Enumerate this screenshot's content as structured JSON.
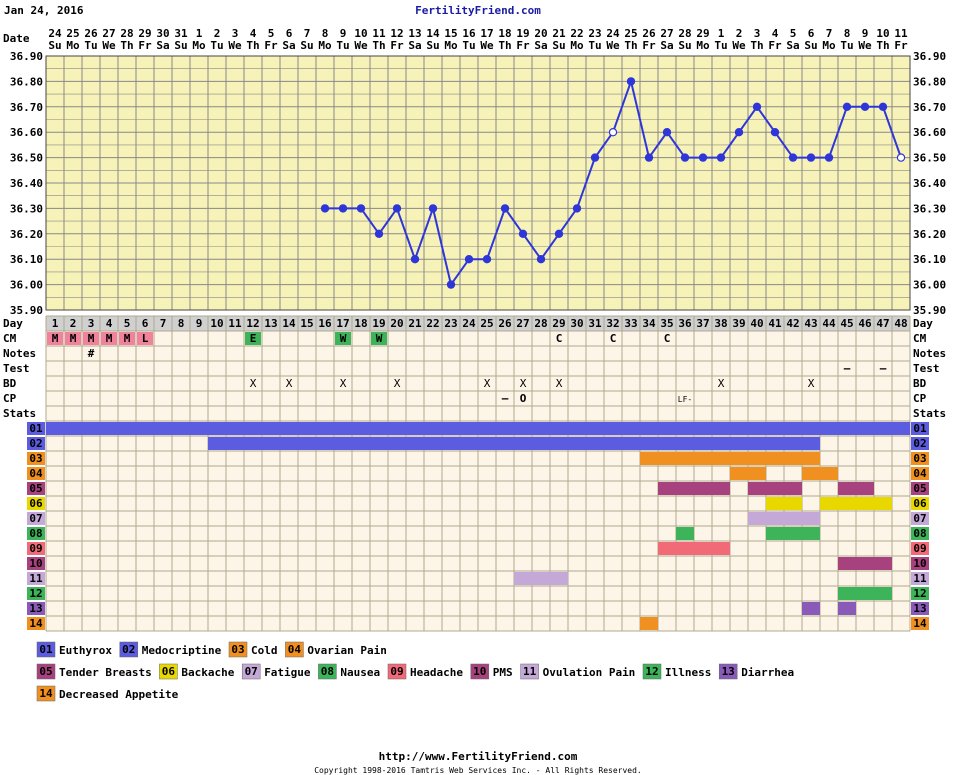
{
  "header": {
    "date": "Jan 24, 2016",
    "site": "FertilityFriend.com"
  },
  "footer": {
    "url": "http://www.FertilityFriend.com",
    "copyright": "Copyright 1998-2016 Tamtris Web Services Inc. - All Rights Reserved."
  },
  "row_labels": {
    "date": "Date",
    "day": "Day",
    "cm": "CM",
    "notes": "Notes",
    "test": "Test",
    "bd": "BD",
    "cp": "CP",
    "stats": "Stats"
  },
  "chart_data": {
    "type": "line",
    "ylim": [
      35.9,
      36.9
    ],
    "y_ticks": [
      "35.90",
      "36.00",
      "36.10",
      "36.20",
      "36.30",
      "36.40",
      "36.50",
      "36.60",
      "36.70",
      "36.80",
      "36.90"
    ],
    "dates": [
      "24",
      "25",
      "26",
      "27",
      "28",
      "29",
      "30",
      "31",
      "1",
      "2",
      "3",
      "4",
      "5",
      "6",
      "7",
      "8",
      "9",
      "10",
      "11",
      "12",
      "13",
      "14",
      "15",
      "16",
      "17",
      "18",
      "19",
      "20",
      "21",
      "22",
      "23",
      "24",
      "25",
      "26",
      "27",
      "28",
      "29",
      "1",
      "2",
      "3",
      "4",
      "5",
      "6",
      "7",
      "8",
      "9",
      "10",
      "11"
    ],
    "weekdays": [
      "Su",
      "Mo",
      "Tu",
      "We",
      "Th",
      "Fr",
      "Sa",
      "Su",
      "Mo",
      "Tu",
      "We",
      "Th",
      "Fr",
      "Sa",
      "Su",
      "Mo",
      "Tu",
      "We",
      "Th",
      "Fr",
      "Sa",
      "Su",
      "Mo",
      "Tu",
      "We",
      "Th",
      "Fr",
      "Sa",
      "Su",
      "Mo",
      "Tu",
      "We",
      "Th",
      "Fr",
      "Sa",
      "Su",
      "Mo",
      "Tu",
      "We",
      "Th",
      "Fr",
      "Sa",
      "Su",
      "Mo",
      "Tu",
      "We",
      "Th",
      "Fr"
    ],
    "days": [
      "1",
      "2",
      "3",
      "4",
      "5",
      "6",
      "7",
      "8",
      "9",
      "10",
      "11",
      "12",
      "13",
      "14",
      "15",
      "16",
      "17",
      "18",
      "19",
      "20",
      "21",
      "22",
      "23",
      "24",
      "25",
      "26",
      "27",
      "28",
      "29",
      "30",
      "31",
      "32",
      "33",
      "34",
      "35",
      "36",
      "37",
      "38",
      "39",
      "40",
      "41",
      "42",
      "43",
      "44",
      "45",
      "46",
      "47",
      "48"
    ],
    "temperatures": [
      null,
      null,
      null,
      null,
      null,
      null,
      null,
      null,
      null,
      null,
      null,
      null,
      null,
      null,
      null,
      36.3,
      36.3,
      36.3,
      36.2,
      36.3,
      36.1,
      36.3,
      36.0,
      36.1,
      36.1,
      36.3,
      36.2,
      36.1,
      36.2,
      36.3,
      36.5,
      36.6,
      36.8,
      36.5,
      36.6,
      36.5,
      36.5,
      36.5,
      36.6,
      36.7,
      36.6,
      36.5,
      36.5,
      36.5,
      36.7,
      36.7,
      36.7,
      36.5
    ],
    "open_points_days": [
      32,
      48
    ],
    "cm": [
      {
        "day": 1,
        "text": "M",
        "color": "#f0829c"
      },
      {
        "day": 2,
        "text": "M",
        "color": "#f0829c"
      },
      {
        "day": 3,
        "text": "M",
        "color": "#f0829c"
      },
      {
        "day": 4,
        "text": "M",
        "color": "#f0829c"
      },
      {
        "day": 5,
        "text": "M",
        "color": "#f0829c"
      },
      {
        "day": 6,
        "text": "L",
        "color": "#f0829c"
      },
      {
        "day": 12,
        "text": "E",
        "color": "#3db35a"
      },
      {
        "day": 17,
        "text": "W",
        "color": "#3db35a"
      },
      {
        "day": 19,
        "text": "W",
        "color": "#3db35a"
      },
      {
        "day": 29,
        "text": "C",
        "color": ""
      },
      {
        "day": 32,
        "text": "C",
        "color": ""
      },
      {
        "day": 35,
        "text": "C",
        "color": ""
      }
    ],
    "notes": [
      {
        "day": 3,
        "text": "#"
      }
    ],
    "test": [
      {
        "day": 45,
        "text": "–"
      },
      {
        "day": 47,
        "text": "–"
      }
    ],
    "bd": [
      12,
      14,
      17,
      20,
      25,
      27,
      29,
      38,
      43
    ],
    "bd_mark": "X",
    "cp": [
      {
        "day": 26,
        "text": "–"
      },
      {
        "day": 27,
        "text": "O"
      },
      {
        "day": 36,
        "text": "LF-"
      }
    ],
    "symptoms": [
      {
        "id": "01",
        "name": "Euthyrox",
        "color": "#5b5cdf",
        "ranges": [
          [
            1,
            48
          ]
        ]
      },
      {
        "id": "02",
        "name": "Medocriptine",
        "color": "#5b5cdf",
        "ranges": [
          [
            10,
            43
          ]
        ]
      },
      {
        "id": "03",
        "name": "Cold",
        "color": "#f09020",
        "ranges": [
          [
            34,
            43
          ]
        ]
      },
      {
        "id": "04",
        "name": "Ovarian Pain",
        "color": "#f09020",
        "ranges": [
          [
            39,
            40
          ],
          [
            43,
            44
          ]
        ]
      },
      {
        "id": "05",
        "name": "Tender Breasts",
        "color": "#a8427e",
        "ranges": [
          [
            35,
            38
          ],
          [
            40,
            42
          ],
          [
            45,
            46
          ]
        ]
      },
      {
        "id": "06",
        "name": "Backache",
        "color": "#e8d800",
        "ranges": [
          [
            41,
            42
          ],
          [
            44,
            47
          ]
        ]
      },
      {
        "id": "07",
        "name": "Fatigue",
        "color": "#c4a8d8",
        "ranges": [
          [
            40,
            43
          ]
        ]
      },
      {
        "id": "08",
        "name": "Nausea",
        "color": "#3db35a",
        "ranges": [
          [
            36,
            36
          ],
          [
            41,
            43
          ]
        ]
      },
      {
        "id": "09",
        "name": "Headache",
        "color": "#f06a78",
        "ranges": [
          [
            35,
            38
          ]
        ]
      },
      {
        "id": "10",
        "name": "PMS",
        "color": "#a8427e",
        "ranges": [
          [
            45,
            47
          ]
        ]
      },
      {
        "id": "11",
        "name": "Ovulation Pain",
        "color": "#c4a8d8",
        "ranges": [
          [
            27,
            29
          ]
        ]
      },
      {
        "id": "12",
        "name": "Illness",
        "color": "#3db35a",
        "ranges": [
          [
            45,
            47
          ]
        ]
      },
      {
        "id": "13",
        "name": "Diarrhea",
        "color": "#8a5ab8",
        "ranges": [
          [
            43,
            43
          ],
          [
            45,
            45
          ]
        ]
      },
      {
        "id": "14",
        "name": "Decreased Appetite",
        "color": "#f09020",
        "ranges": [
          [
            34,
            34
          ]
        ]
      }
    ],
    "colors": {
      "line": "#2f36d9",
      "chart_bg": "#f7f2b8",
      "lower_bg": "#fdf6e8",
      "day_row": "#d0d0d0",
      "grid": "#888888"
    }
  }
}
